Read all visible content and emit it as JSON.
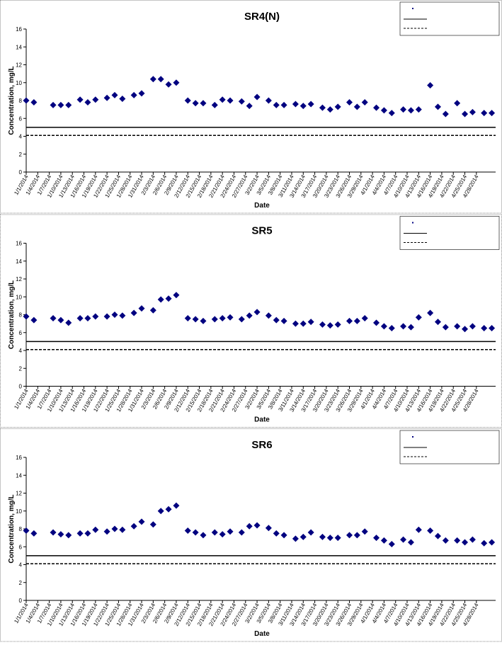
{
  "chart_data": [
    {
      "type": "scatter",
      "title": "SR4(N)",
      "y_label": "Concentration, mg/L",
      "x_label": "Date",
      "xlim": [
        "1/1/2014",
        "5/3/2014"
      ],
      "xticks": [
        "1/1/2014",
        "1/4/2014",
        "1/7/2014",
        "1/10/2014",
        "1/13/2014",
        "1/16/2014",
        "1/19/2014",
        "1/22/2014",
        "1/25/2014",
        "1/28/2014",
        "1/31/2014",
        "2/3/2014",
        "2/6/2014",
        "2/9/2014",
        "2/12/2014",
        "2/15/2014",
        "2/18/2014",
        "2/21/2014",
        "2/24/2014",
        "2/27/2014",
        "3/2/2014",
        "3/5/2014",
        "3/8/2014",
        "3/11/2014",
        "3/14/2014",
        "3/17/2014",
        "3/20/2014",
        "3/23/2014",
        "3/26/2014",
        "3/29/2014",
        "4/1/2014",
        "4/4/2014",
        "4/7/2014",
        "4/10/2014",
        "4/13/2014",
        "4/16/2014",
        "4/19/2014",
        "4/22/2014",
        "4/25/2014",
        "4/28/2014"
      ],
      "ylim": [
        0,
        16
      ],
      "yticks": [
        0,
        2,
        4,
        6,
        8,
        10,
        12,
        14,
        16
      ],
      "series": [
        {
          "color": "#000080",
          "x": [
            "1/1/2014",
            "1/3/2014",
            "1/8/2014",
            "1/10/2014",
            "1/12/2014",
            "1/15/2014",
            "1/17/2014",
            "1/19/2014",
            "1/22/2014",
            "1/24/2014",
            "1/26/2014",
            "1/29/2014",
            "1/31/2014",
            "2/3/2014",
            "2/5/2014",
            "2/7/2014",
            "2/9/2014",
            "2/12/2014",
            "2/14/2014",
            "2/16/2014",
            "2/19/2014",
            "2/21/2014",
            "2/23/2014",
            "2/26/2014",
            "2/28/2014",
            "3/2/2014",
            "3/5/2014",
            "3/7/2014",
            "3/9/2014",
            "3/12/2014",
            "3/14/2014",
            "3/16/2014",
            "3/19/2014",
            "3/21/2014",
            "3/23/2014",
            "3/26/2014",
            "3/28/2014",
            "3/30/2014",
            "4/2/2014",
            "4/4/2014",
            "4/6/2014",
            "4/9/2014",
            "4/11/2014",
            "4/13/2014",
            "4/16/2014",
            "4/18/2014",
            "4/20/2014",
            "4/23/2014",
            "4/25/2014",
            "4/27/2014",
            "4/30/2014",
            "5/2/2014"
          ],
          "values": [
            8.0,
            7.8,
            7.5,
            7.5,
            7.5,
            8.1,
            7.8,
            8.1,
            8.3,
            8.6,
            8.2,
            8.6,
            8.8,
            10.4,
            10.4,
            9.8,
            10.0,
            8.0,
            7.7,
            7.7,
            7.5,
            8.1,
            8.0,
            7.9,
            7.4,
            8.4,
            8.0,
            7.5,
            7.5,
            7.6,
            7.4,
            7.6,
            7.2,
            7.0,
            7.3,
            7.8,
            7.3,
            7.8,
            7.2,
            6.9,
            6.6,
            7.0,
            6.9,
            7.0,
            9.7,
            7.3,
            6.5,
            7.7,
            6.5,
            6.7,
            6.6,
            6.6
          ]
        }
      ],
      "reference_lines": [
        {
          "value": 5,
          "style": "solid"
        },
        {
          "value": 4.1,
          "style": "dashed"
        }
      ]
    },
    {
      "type": "scatter",
      "title": "SR5",
      "y_label": "Concentration, mg/L",
      "x_label": "Date",
      "xlim": [
        "1/1/2014",
        "5/3/2014"
      ],
      "xticks": [
        "1/1/2014",
        "1/4/2014",
        "1/7/2014",
        "1/10/2014",
        "1/13/2014",
        "1/16/2014",
        "1/19/2014",
        "1/22/2014",
        "1/25/2014",
        "1/28/2014",
        "1/31/2014",
        "2/3/2014",
        "2/6/2014",
        "2/9/2014",
        "2/12/2014",
        "2/15/2014",
        "2/18/2014",
        "2/21/2014",
        "2/24/2014",
        "2/27/2014",
        "3/2/2014",
        "3/5/2014",
        "3/8/2014",
        "3/11/2014",
        "3/14/2014",
        "3/17/2014",
        "3/20/2014",
        "3/23/2014",
        "3/26/2014",
        "3/29/2014",
        "4/1/2014",
        "4/4/2014",
        "4/7/2014",
        "4/10/2014",
        "4/13/2014",
        "4/16/2014",
        "4/19/2014",
        "4/22/2014",
        "4/25/2014",
        "4/28/2014"
      ],
      "ylim": [
        0,
        16
      ],
      "yticks": [
        0,
        2,
        4,
        6,
        8,
        10,
        12,
        14,
        16
      ],
      "series": [
        {
          "color": "#000080",
          "x": [
            "1/1/2014",
            "1/3/2014",
            "1/8/2014",
            "1/10/2014",
            "1/12/2014",
            "1/15/2014",
            "1/17/2014",
            "1/19/2014",
            "1/22/2014",
            "1/24/2014",
            "1/26/2014",
            "1/29/2014",
            "1/31/2014",
            "2/3/2014",
            "2/5/2014",
            "2/7/2014",
            "2/9/2014",
            "2/12/2014",
            "2/14/2014",
            "2/16/2014",
            "2/19/2014",
            "2/21/2014",
            "2/23/2014",
            "2/26/2014",
            "2/28/2014",
            "3/2/2014",
            "3/5/2014",
            "3/7/2014",
            "3/9/2014",
            "3/12/2014",
            "3/14/2014",
            "3/16/2014",
            "3/19/2014",
            "3/21/2014",
            "3/23/2014",
            "3/26/2014",
            "3/28/2014",
            "3/30/2014",
            "4/2/2014",
            "4/4/2014",
            "4/6/2014",
            "4/9/2014",
            "4/11/2014",
            "4/13/2014",
            "4/16/2014",
            "4/18/2014",
            "4/20/2014",
            "4/23/2014",
            "4/25/2014",
            "4/27/2014",
            "4/30/2014",
            "5/2/2014"
          ],
          "values": [
            7.8,
            7.4,
            7.6,
            7.4,
            7.1,
            7.6,
            7.6,
            7.8,
            7.8,
            8.0,
            7.9,
            8.2,
            8.7,
            8.5,
            9.7,
            9.8,
            10.2,
            7.6,
            7.5,
            7.3,
            7.5,
            7.6,
            7.7,
            7.5,
            7.9,
            8.3,
            7.9,
            7.4,
            7.3,
            7.0,
            7.0,
            7.2,
            6.9,
            6.8,
            6.9,
            7.3,
            7.3,
            7.6,
            7.1,
            6.7,
            6.5,
            6.7,
            6.6,
            7.7,
            8.2,
            7.2,
            6.6,
            6.7,
            6.4,
            6.7,
            6.5,
            6.5
          ]
        }
      ],
      "reference_lines": [
        {
          "value": 5,
          "style": "solid"
        },
        {
          "value": 4.1,
          "style": "dashed"
        }
      ]
    },
    {
      "type": "scatter",
      "title": "SR6",
      "y_label": "Concentration, mg/L",
      "x_label": "Date",
      "xlim": [
        "1/1/2014",
        "5/3/2014"
      ],
      "xticks": [
        "1/1/2014",
        "1/4/2014",
        "1/7/2014",
        "1/10/2014",
        "1/13/2014",
        "1/16/2014",
        "1/19/2014",
        "1/22/2014",
        "1/25/2014",
        "1/28/2014",
        "1/31/2014",
        "2/3/2014",
        "2/6/2014",
        "2/9/2014",
        "2/12/2014",
        "2/15/2014",
        "2/18/2014",
        "2/21/2014",
        "2/24/2014",
        "2/27/2014",
        "3/2/2014",
        "3/5/2014",
        "3/8/2014",
        "3/11/2014",
        "3/14/2014",
        "3/17/2014",
        "3/20/2014",
        "3/23/2014",
        "3/26/2014",
        "3/29/2014",
        "4/1/2014",
        "4/4/2014",
        "4/7/2014",
        "4/10/2014",
        "4/13/2014",
        "4/16/2014",
        "4/19/2014",
        "4/22/2014",
        "4/25/2014",
        "4/28/2014"
      ],
      "ylim": [
        0,
        16
      ],
      "yticks": [
        0,
        2,
        4,
        6,
        8,
        10,
        12,
        14,
        16
      ],
      "series": [
        {
          "color": "#000080",
          "x": [
            "1/1/2014",
            "1/3/2014",
            "1/8/2014",
            "1/10/2014",
            "1/12/2014",
            "1/15/2014",
            "1/17/2014",
            "1/19/2014",
            "1/22/2014",
            "1/24/2014",
            "1/26/2014",
            "1/29/2014",
            "1/31/2014",
            "2/3/2014",
            "2/5/2014",
            "2/7/2014",
            "2/9/2014",
            "2/12/2014",
            "2/14/2014",
            "2/16/2014",
            "2/19/2014",
            "2/21/2014",
            "2/23/2014",
            "2/26/2014",
            "2/28/2014",
            "3/2/2014",
            "3/5/2014",
            "3/7/2014",
            "3/9/2014",
            "3/12/2014",
            "3/14/2014",
            "3/16/2014",
            "3/19/2014",
            "3/21/2014",
            "3/23/2014",
            "3/26/2014",
            "3/28/2014",
            "3/30/2014",
            "4/2/2014",
            "4/4/2014",
            "4/6/2014",
            "4/9/2014",
            "4/11/2014",
            "4/13/2014",
            "4/16/2014",
            "4/18/2014",
            "4/20/2014",
            "4/23/2014",
            "4/25/2014",
            "4/27/2014",
            "4/30/2014",
            "5/2/2014"
          ],
          "values": [
            7.8,
            7.5,
            7.6,
            7.4,
            7.3,
            7.5,
            7.5,
            7.9,
            7.7,
            8.0,
            7.9,
            8.3,
            8.8,
            8.5,
            10.0,
            10.2,
            10.6,
            7.8,
            7.6,
            7.3,
            7.6,
            7.4,
            7.7,
            7.6,
            8.3,
            8.4,
            8.1,
            7.5,
            7.3,
            6.9,
            7.1,
            7.6,
            7.1,
            7.0,
            7.0,
            7.3,
            7.3,
            7.7,
            7.0,
            6.7,
            6.3,
            6.8,
            6.5,
            7.9,
            7.8,
            7.2,
            6.7,
            6.7,
            6.5,
            6.8,
            6.4,
            6.5
          ]
        }
      ],
      "reference_lines": [
        {
          "value": 5,
          "style": "solid"
        },
        {
          "value": 4.1,
          "style": "dashed"
        }
      ]
    }
  ]
}
